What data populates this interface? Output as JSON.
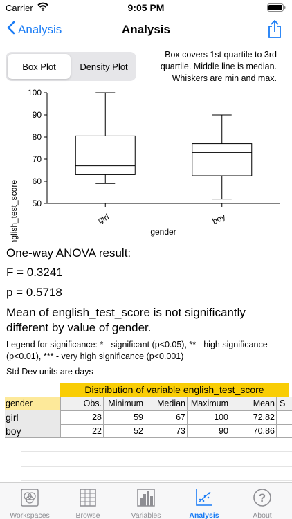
{
  "status_bar": {
    "carrier": "Carrier",
    "time": "9:05 PM"
  },
  "nav": {
    "back_label": "Analysis",
    "title": "Analysis"
  },
  "segmented": {
    "box_plot": "Box Plot",
    "density_plot": "Density Plot",
    "selected": "Box Plot"
  },
  "plot_note": "Box covers 1st quartile to 3rd quartile. Middle line is median. Whiskers are min and max.",
  "chart_data": {
    "type": "boxplot",
    "xlabel": "gender",
    "ylabel": "english_test_score",
    "ylim": [
      50,
      100
    ],
    "yticks": [
      "100",
      "90",
      "80",
      "70",
      "60",
      "50"
    ],
    "categories": [
      "girl",
      "boy"
    ],
    "boxes": [
      {
        "category": "girl",
        "min": 59,
        "q1": 63,
        "median": 67,
        "q3": 80.5,
        "max": 100
      },
      {
        "category": "boy",
        "min": 52,
        "q1": 62.5,
        "median": 73,
        "q3": 77,
        "max": 90
      }
    ]
  },
  "results": {
    "anova_title": "One-way ANOVA result:",
    "f_value": "F = 0.3241",
    "p_value": "p = 0.5718",
    "conclusion": "Mean of english_test_score is not significantly different by value of gender.",
    "legend": "Legend for significance: * - significant (p<0.05), ** - high significance (p<0.01), *** - very high significance (p<0.001)",
    "std_note": "Std Dev units are days"
  },
  "table": {
    "title": "Distribution of variable english_test_score",
    "row_header": "gender",
    "columns": [
      "Obs.",
      "Minimum",
      "Median",
      "Maximum",
      "Mean",
      "S"
    ],
    "rows": [
      {
        "label": "girl",
        "values": [
          "28",
          "59",
          "67",
          "100",
          "72.82",
          ""
        ]
      },
      {
        "label": "boy",
        "values": [
          "22",
          "52",
          "73",
          "90",
          "70.86",
          ""
        ]
      }
    ]
  },
  "tab_bar": {
    "tabs": [
      {
        "label": "Workspaces",
        "icon": "workspaces-icon"
      },
      {
        "label": "Browse",
        "icon": "grid-icon"
      },
      {
        "label": "Variables",
        "icon": "bar-chart-icon"
      },
      {
        "label": "Analysis",
        "icon": "scatter-icon"
      },
      {
        "label": "About",
        "icon": "question-icon"
      }
    ],
    "active": "Analysis"
  },
  "colors": {
    "accent": "#1a7cf5",
    "table_title_bg": "#f9cd05",
    "table_header_bg": "#fde99a"
  }
}
